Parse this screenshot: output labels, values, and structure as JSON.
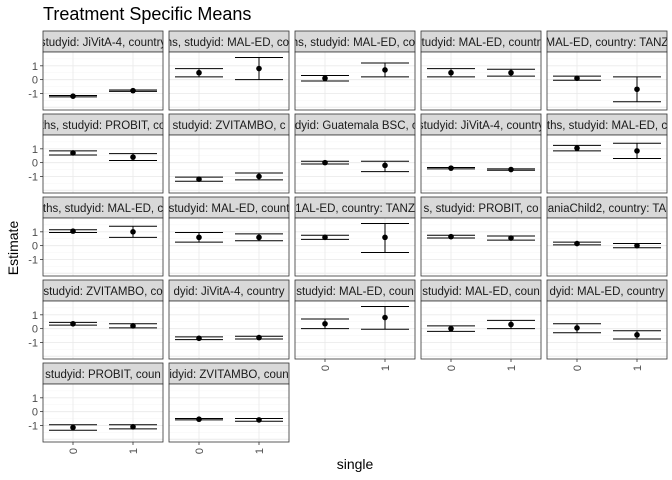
{
  "chart_data": {
    "type": "scatter",
    "title": "Treatment Specific Means",
    "xlabel": "single",
    "ylabel": "Estimate",
    "categories": [
      "0",
      "1"
    ],
    "y_ticks": [
      1,
      0,
      -1
    ],
    "ylim": [
      -2.2,
      2.0
    ],
    "grid": true,
    "legend": "none",
    "panels": [
      {
        "strip": "studyid: JiVitA-4, country",
        "points": [
          {
            "x": "0",
            "est": -1.2,
            "lo": -1.25,
            "hi": -1.15
          },
          {
            "x": "1",
            "est": -0.8,
            "lo": -0.85,
            "hi": -0.75
          }
        ]
      },
      {
        "strip": "ths, studyid: MAL-ED, cou",
        "points": [
          {
            "x": "0",
            "est": 0.5,
            "lo": 0.2,
            "hi": 0.8
          },
          {
            "x": "1",
            "est": 0.8,
            "lo": 0.0,
            "hi": 1.6
          }
        ]
      },
      {
        "strip": "ths, studyid: MAL-ED, cou",
        "points": [
          {
            "x": "0",
            "est": 0.1,
            "lo": -0.1,
            "hi": 0.3
          },
          {
            "x": "1",
            "est": 0.7,
            "lo": 0.2,
            "hi": 1.2
          }
        ]
      },
      {
        "strip": "studyid: MAL-ED, country",
        "points": [
          {
            "x": "0",
            "est": 0.5,
            "lo": 0.2,
            "hi": 0.8
          },
          {
            "x": "1",
            "est": 0.5,
            "lo": 0.25,
            "hi": 0.75
          }
        ]
      },
      {
        "strip": "MAL-ED, country: TANZ",
        "points": [
          {
            "x": "0",
            "est": 0.1,
            "lo": -0.05,
            "hi": 0.25
          },
          {
            "x": "1",
            "est": -0.7,
            "lo": -1.6,
            "hi": 0.2
          }
        ]
      },
      {
        "strip": "ths, studyid: PROBIT, co",
        "points": [
          {
            "x": "0",
            "est": 0.7,
            "lo": 0.55,
            "hi": 0.85
          },
          {
            "x": "1",
            "est": 0.4,
            "lo": 0.15,
            "hi": 0.65
          }
        ]
      },
      {
        "strip": "studyid: ZVITAMBO, c",
        "points": [
          {
            "x": "0",
            "est": -1.2,
            "lo": -1.35,
            "hi": -1.05
          },
          {
            "x": "1",
            "est": -1.0,
            "lo": -1.25,
            "hi": -0.75
          }
        ]
      },
      {
        "strip": "idyid: Guatemala BSC, c",
        "points": [
          {
            "x": "0",
            "est": 0.0,
            "lo": -0.1,
            "hi": 0.1
          },
          {
            "x": "1",
            "est": -0.2,
            "lo": -0.65,
            "hi": 0.1
          }
        ]
      },
      {
        "strip": "studyid: JiVitA-4, country",
        "points": [
          {
            "x": "0",
            "est": -0.4,
            "lo": -0.45,
            "hi": -0.35
          },
          {
            "x": "1",
            "est": -0.5,
            "lo": -0.55,
            "hi": -0.45
          }
        ]
      },
      {
        "strip": "ths, studyid: MAL-ED, c",
        "points": [
          {
            "x": "0",
            "est": 1.05,
            "lo": 0.85,
            "hi": 1.25
          },
          {
            "x": "1",
            "est": 0.85,
            "lo": 0.3,
            "hi": 1.4
          }
        ]
      },
      {
        "strip": "ths, studyid: MAL-ED, c",
        "points": [
          {
            "x": "0",
            "est": 1.05,
            "lo": 0.95,
            "hi": 1.15
          },
          {
            "x": "1",
            "est": 1.0,
            "lo": 0.6,
            "hi": 1.4
          }
        ]
      },
      {
        "strip": "studyid: MAL-ED, count",
        "points": [
          {
            "x": "0",
            "est": 0.6,
            "lo": 0.25,
            "hi": 0.95
          },
          {
            "x": "1",
            "est": 0.6,
            "lo": 0.35,
            "hi": 0.85
          }
        ]
      },
      {
        "strip": "1AL-ED, country: TANZ",
        "points": [
          {
            "x": "0",
            "est": 0.6,
            "lo": 0.45,
            "hi": 0.75
          },
          {
            "x": "1",
            "est": 0.6,
            "lo": -0.5,
            "hi": 1.6
          }
        ]
      },
      {
        "strip": "s, studyid: PROBIT, co",
        "points": [
          {
            "x": "0",
            "est": 0.65,
            "lo": 0.55,
            "hi": 0.75
          },
          {
            "x": "1",
            "est": 0.55,
            "lo": 0.4,
            "hi": 0.7
          }
        ]
      },
      {
        "strip": "aniaChild2, country: TA",
        "points": [
          {
            "x": "0",
            "est": 0.15,
            "lo": 0.05,
            "hi": 0.25
          },
          {
            "x": "1",
            "est": 0.0,
            "lo": -0.15,
            "hi": 0.15
          }
        ]
      },
      {
        "strip": "studyid: ZVITAMBO, co",
        "points": [
          {
            "x": "0",
            "est": 0.35,
            "lo": 0.25,
            "hi": 0.45
          },
          {
            "x": "1",
            "est": 0.2,
            "lo": 0.05,
            "hi": 0.35
          }
        ]
      },
      {
        "strip": "dyid: JiVitA-4, country",
        "points": [
          {
            "x": "0",
            "est": -0.7,
            "lo": -0.8,
            "hi": -0.6
          },
          {
            "x": "1",
            "est": -0.65,
            "lo": -0.75,
            "hi": -0.55
          }
        ]
      },
      {
        "strip": "studyid: MAL-ED, coun",
        "points": [
          {
            "x": "0",
            "est": 0.35,
            "lo": 0.0,
            "hi": 0.7
          },
          {
            "x": "1",
            "est": 0.8,
            "lo": -0.05,
            "hi": 1.6
          }
        ]
      },
      {
        "strip": "studyid: MAL-ED, coun",
        "points": [
          {
            "x": "0",
            "est": 0.0,
            "lo": -0.2,
            "hi": 0.2
          },
          {
            "x": "1",
            "est": 0.3,
            "lo": 0.0,
            "hi": 0.6
          }
        ]
      },
      {
        "strip": "dyid: MAL-ED, country",
        "points": [
          {
            "x": "0",
            "est": 0.05,
            "lo": -0.3,
            "hi": 0.35
          },
          {
            "x": "1",
            "est": -0.45,
            "lo": -0.75,
            "hi": -0.15
          }
        ]
      },
      {
        "strip": "studyid: PROBIT, coun",
        "points": [
          {
            "x": "0",
            "est": -1.15,
            "lo": -1.35,
            "hi": -0.95
          },
          {
            "x": "1",
            "est": -1.1,
            "lo": -1.25,
            "hi": -0.95
          }
        ]
      },
      {
        "strip": "idyid: ZVITAMBO, coun",
        "points": [
          {
            "x": "0",
            "est": -0.55,
            "lo": -0.6,
            "hi": -0.5
          },
          {
            "x": "1",
            "est": -0.6,
            "lo": -0.7,
            "hi": -0.5
          }
        ]
      }
    ]
  }
}
